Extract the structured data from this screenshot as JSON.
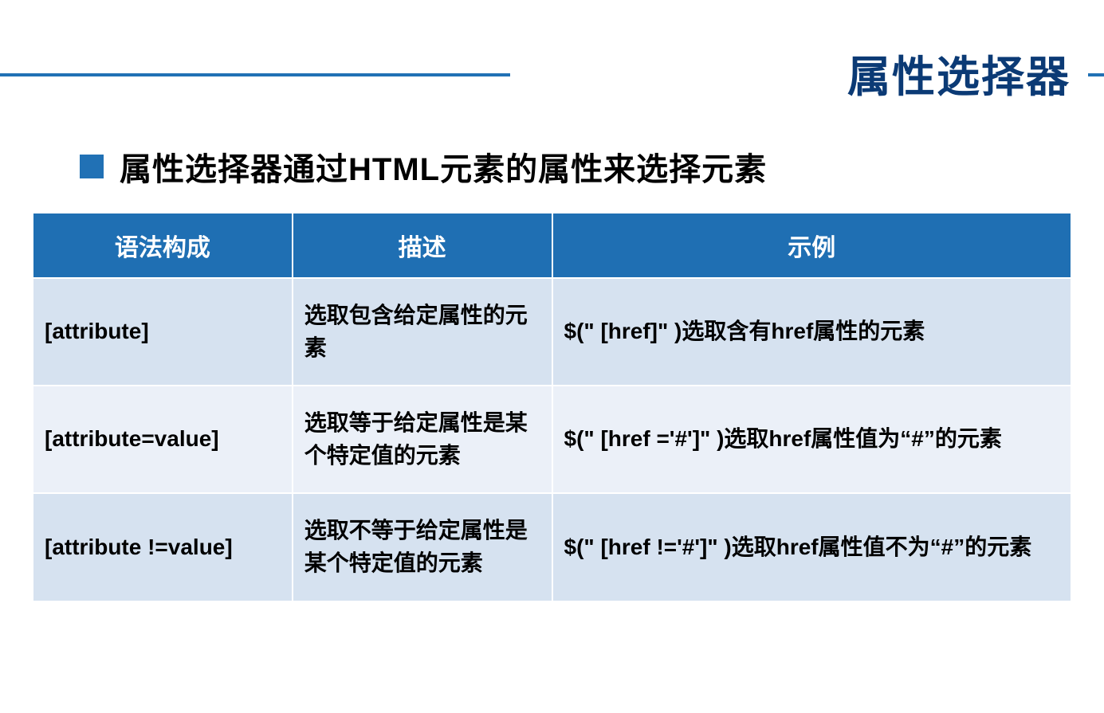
{
  "header": {
    "title": "属性选择器",
    "title_color": "#0b3a75",
    "title_fontsize": 54,
    "line_color": "#2171b5"
  },
  "subtitle": {
    "bullet_color": "#2171b5",
    "text": "属性选择器通过HTML元素的属性来选择元素",
    "fontsize": 40
  },
  "table": {
    "type": "table",
    "header_bg": "#1f6fb3",
    "header_fg": "#ffffff",
    "row_odd_bg": "#d6e2f0",
    "row_even_bg": "#ebf0f8",
    "border_color": "#ffffff",
    "columns": [
      {
        "label": "语法构成",
        "width": "25%"
      },
      {
        "label": "描述",
        "width": "25%"
      },
      {
        "label": "示例",
        "width": "50%"
      }
    ],
    "rows": [
      {
        "syntax": "[attribute]",
        "desc": "选取包含给定属性的元素",
        "example": "$(\" [href]\" )选取含有href属性的元素"
      },
      {
        "syntax": "[attribute=value]",
        "desc": "选取等于给定属性是某个特定值的元素",
        "example": "$(\" [href ='#']\" )选取href属性值为“#”的元素"
      },
      {
        "syntax": "[attribute !=value]",
        "desc": "选取不等于给定属性是某个特定值的元素",
        "example": "$(\" [href !='#']\" )选取href属性值不为“#”的元素"
      }
    ]
  }
}
